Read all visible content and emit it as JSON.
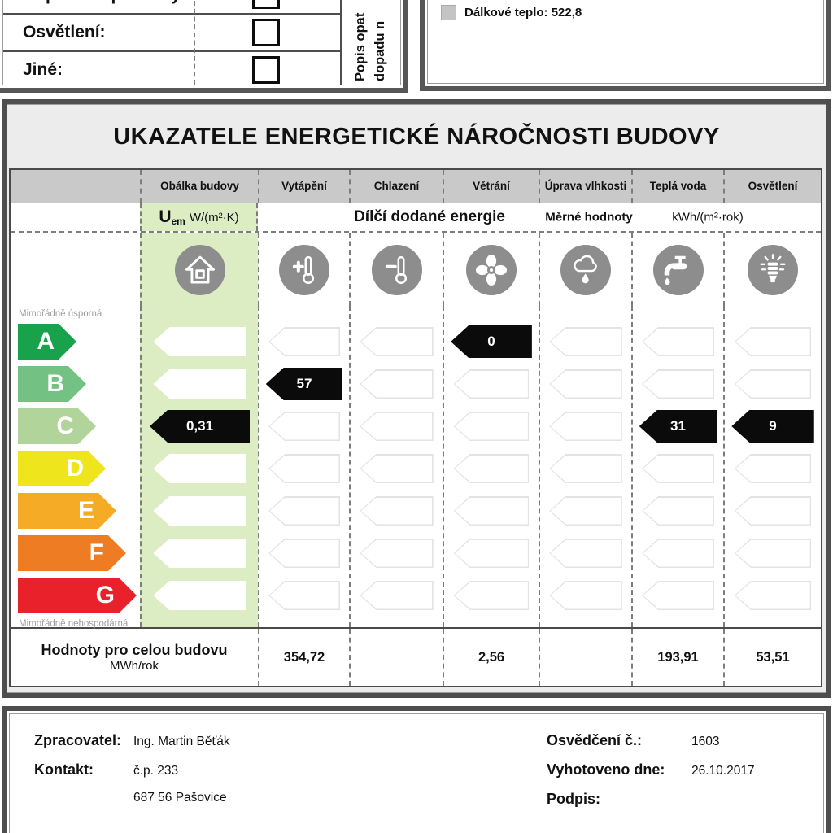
{
  "top_left_panel": {
    "rows": [
      {
        "label": "Příprava teplé vody:",
        "checked": false
      },
      {
        "label": "Osvětlení:",
        "checked": false
      },
      {
        "label": "Jiné:",
        "checked": false
      }
    ],
    "rotated_note_line1": "Popis opat",
    "rotated_note_line2": "dopadu n"
  },
  "legend_panel": {
    "items": [
      {
        "label": "Dálkové teplo: 522,8",
        "swatch_color": "#c4c4c4"
      }
    ]
  },
  "main": {
    "title": "UKAZATELE ENERGETICKÉ NÁROČNOSTI BUDOVY",
    "subheader": {
      "u_symbol": "U",
      "u_subscript": "em",
      "u_unit": "W/(m²·K)",
      "partial_energy": "Dílčí dodané energie",
      "specific_values": "Měrné hodnoty",
      "specific_unit": "kWh/(m²·rok)"
    },
    "scale": {
      "top_label": "Mimořádně úsporná",
      "bottom_label": "Mimořádně nehospodárná",
      "grades": [
        {
          "letter": "A",
          "color": "#17a24b"
        },
        {
          "letter": "B",
          "color": "#74c184"
        },
        {
          "letter": "C",
          "color": "#b0d49a"
        },
        {
          "letter": "D",
          "color": "#efe51d"
        },
        {
          "letter": "E",
          "color": "#f6ab26"
        },
        {
          "letter": "F",
          "color": "#ee7c22"
        },
        {
          "letter": "G",
          "color": "#e9212b"
        }
      ]
    },
    "columns": [
      {
        "key": "obalka-budovy",
        "header": "Obálka budovy",
        "icon": "house-icon",
        "value": "0,31",
        "value_grade": "C",
        "total": ""
      },
      {
        "key": "vytapeni",
        "header": "Vytápění",
        "icon": "heating-thermometer-icon",
        "value": "57",
        "value_grade": "B",
        "total": "354,72"
      },
      {
        "key": "chlazeni",
        "header": "Chlazení",
        "icon": "cooling-thermometer-icon",
        "value": "",
        "value_grade": "",
        "total": ""
      },
      {
        "key": "vetrani",
        "header": "Větrání",
        "icon": "fan-icon",
        "value": "0",
        "value_grade": "A",
        "total": "2,56"
      },
      {
        "key": "uprava-vlhkosti",
        "header": "Úprava vlhkosti",
        "icon": "humidity-cloud-icon",
        "value": "",
        "value_grade": "",
        "total": ""
      },
      {
        "key": "tepla-voda",
        "header": "Teplá voda",
        "icon": "water-tap-icon",
        "value": "31",
        "value_grade": "C",
        "total": "193,91"
      },
      {
        "key": "osvetleni",
        "header": "Osvětlení",
        "icon": "light-bulb-icon",
        "value": "9",
        "value_grade": "C",
        "total": "53,51"
      }
    ],
    "summary": {
      "label_line1": "Hodnoty pro celou budovu",
      "label_line2": "MWh/rok"
    }
  },
  "footer": {
    "left": [
      {
        "label": "Zpracovatel:",
        "value": "Ing. Martin Běťák"
      },
      {
        "label": "Kontakt:",
        "value": "č.p. 233"
      },
      {
        "label": "",
        "value": "687 56  Pašovice"
      }
    ],
    "right": [
      {
        "label": "Osvědčení č.:",
        "value": "1603"
      },
      {
        "label": "Vyhotoveno dne:",
        "value": "26.10.2017"
      },
      {
        "label": "Podpis:",
        "value": ""
      }
    ]
  },
  "colors": {
    "green_column": "#dcecc3",
    "icon_circle": "#8d8d8d",
    "value_arrow": "#0b0b0b",
    "header_row": "#c9c9c9"
  }
}
